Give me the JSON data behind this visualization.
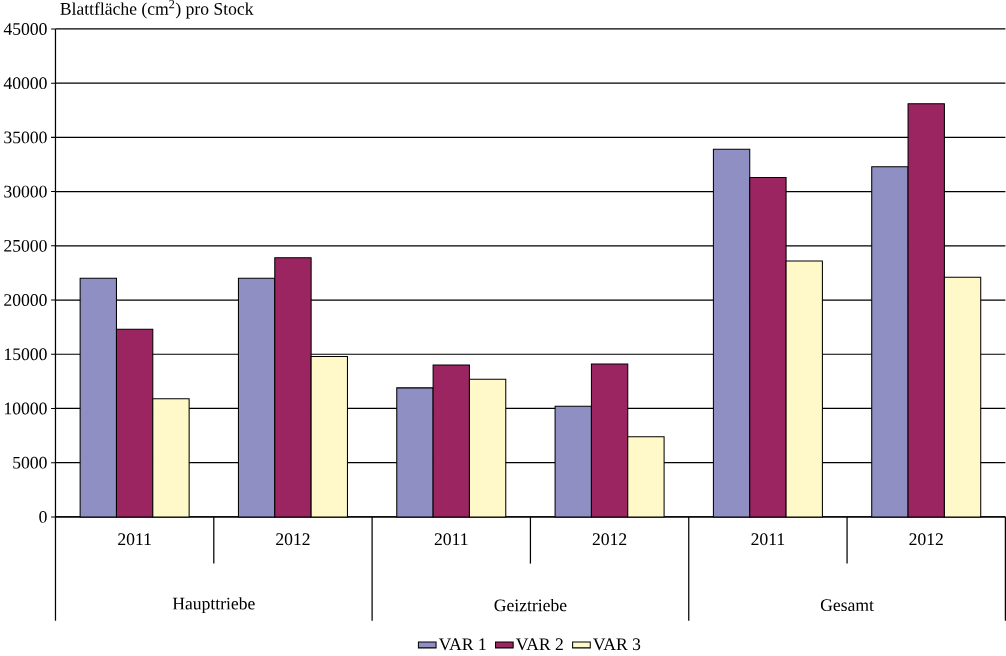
{
  "chart_data": {
    "type": "bar",
    "ylabel": "Blattfläche (cm$^{2}$) pro Stock",
    "categories": [
      "2011",
      "2012",
      "2011",
      "2012",
      "2011",
      "2012"
    ],
    "annotations": [
      "Haupttriebe",
      "Geiztriebe",
      "Gesamt"
    ],
    "series": [
      {
        "name": "VAR 1",
        "color": "#8f8fc4",
        "values": [
          22000,
          22000,
          11900,
          10200,
          33900,
          32300
        ]
      },
      {
        "name": "VAR 2",
        "color": "#9b2560",
        "values": [
          17300,
          23900,
          14000,
          14100,
          31300,
          38100
        ]
      },
      {
        "name": "VAR 3",
        "color": "#fff8c8",
        "values": [
          10900,
          14800,
          12700,
          7400,
          23600,
          22100
        ]
      }
    ],
    "ylim": [
      0,
      45000
    ],
    "yticks": [
      0,
      5000,
      10000,
      15000,
      20000,
      25000,
      30000,
      35000,
      40000,
      45000
    ],
    "grid": "y",
    "legend": "bottom"
  }
}
